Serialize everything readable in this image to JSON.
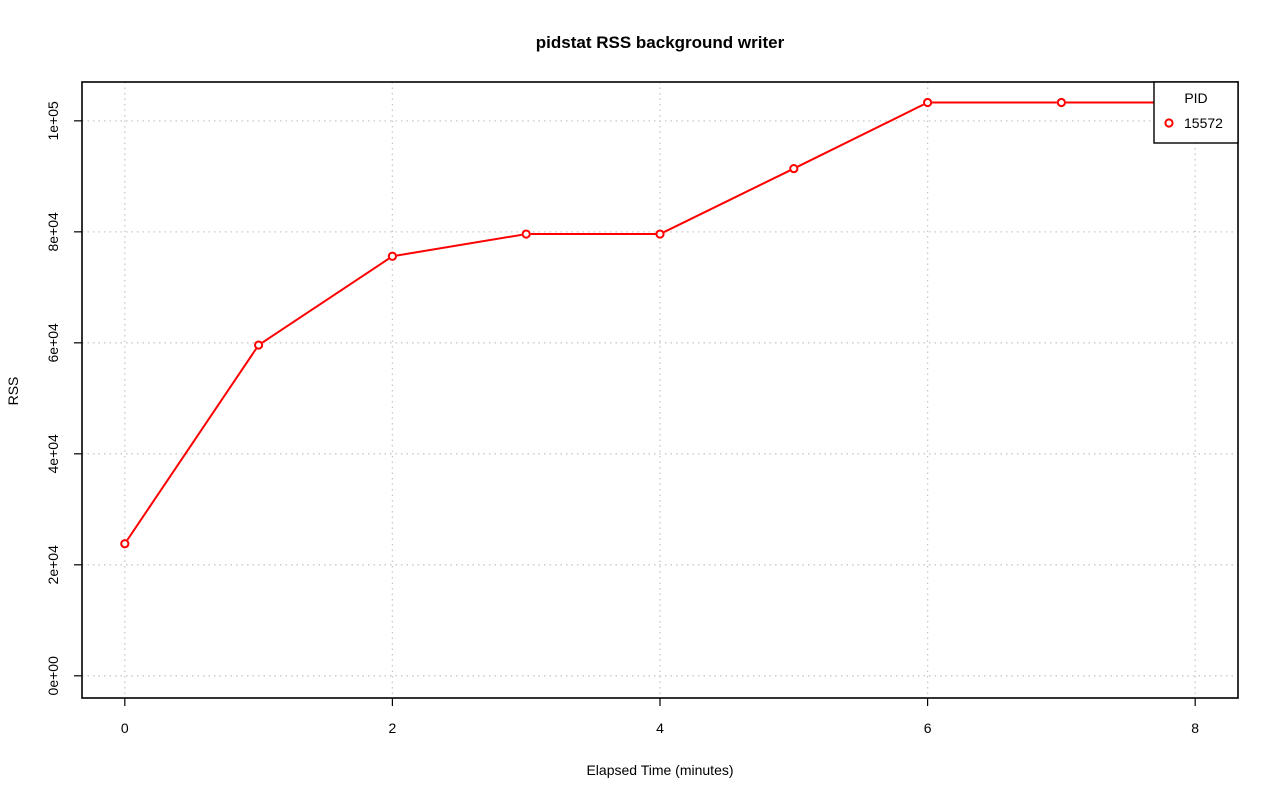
{
  "chart_data": {
    "type": "line",
    "title": "pidstat RSS background writer",
    "xlabel": "Elapsed Time (minutes)",
    "ylabel": "RSS",
    "xlim": [
      -0.32,
      8.32
    ],
    "ylim": [
      -4000,
      107000
    ],
    "x_ticks": [
      0,
      2,
      4,
      6,
      8
    ],
    "x_tick_labels": [
      "0",
      "2",
      "4",
      "6",
      "8"
    ],
    "y_ticks": [
      0,
      20000,
      40000,
      60000,
      80000,
      100000
    ],
    "y_tick_labels": [
      "0e+00",
      "2e+04",
      "4e+04",
      "6e+04",
      "8e+04",
      "1e+05"
    ],
    "grid": true,
    "legend": {
      "title": "PID",
      "placement": "top-right"
    },
    "series": [
      {
        "name": "15572",
        "color": "#ff0000",
        "x": [
          0,
          1,
          2,
          3,
          4,
          5,
          6,
          7,
          8
        ],
        "y": [
          23800,
          59600,
          75600,
          79600,
          79600,
          91400,
          103300,
          103300,
          103300
        ]
      }
    ]
  }
}
